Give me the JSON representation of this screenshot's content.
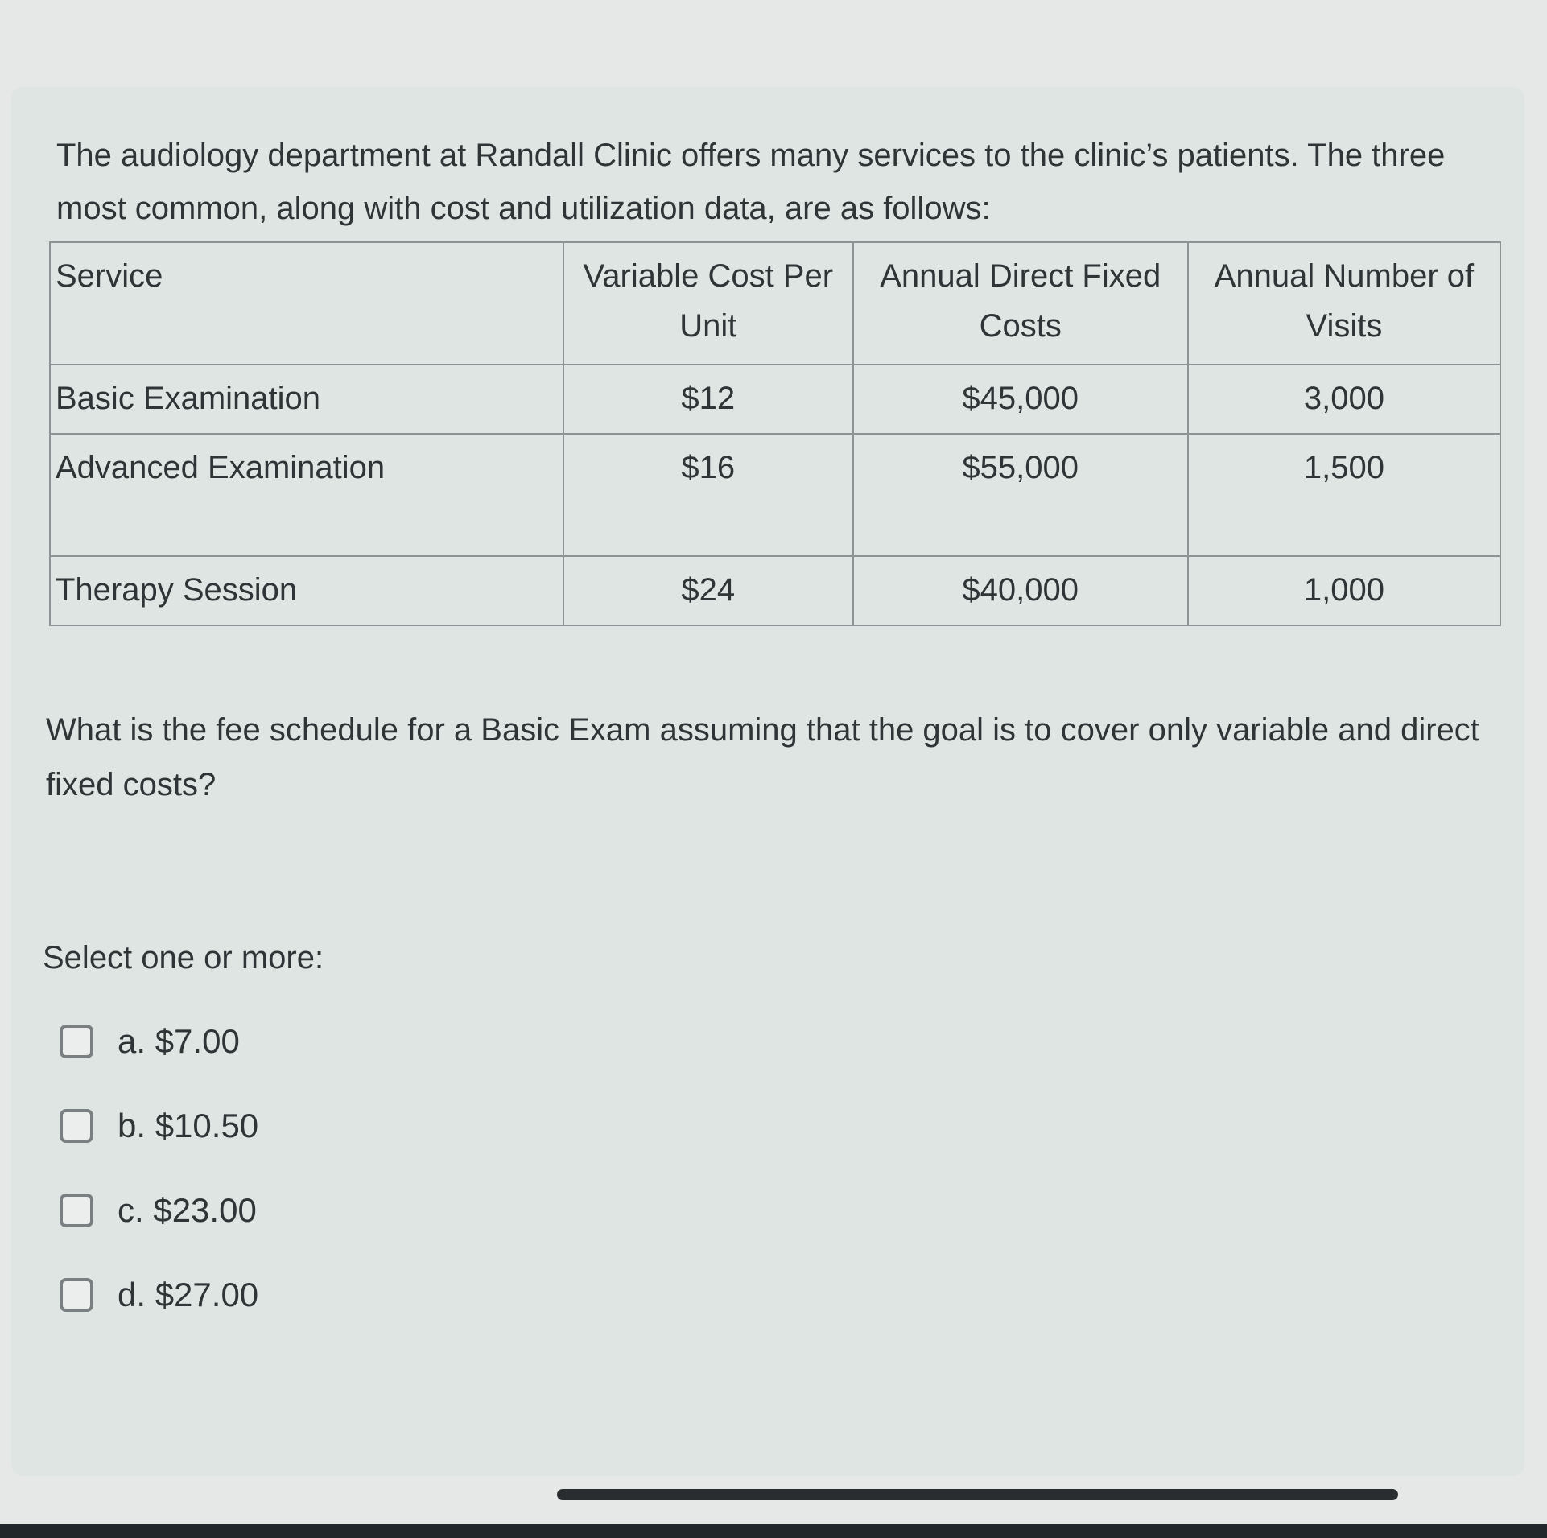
{
  "question": {
    "intro": "The audiology department at Randall Clinic offers many services to the clinic’s patients. The three most common, along with cost and utilization data, are as follows:",
    "table": {
      "headers": [
        "Service",
        "Variable Cost Per Unit",
        "Annual Direct Fixed Costs",
        "Annual Number of Visits"
      ],
      "rows": [
        [
          "Basic Examination",
          "$12",
          "$45,000",
          "3,000"
        ],
        [
          "Advanced Examination",
          "$16",
          "$55,000",
          "1,500"
        ],
        [
          "Therapy Session",
          "$24",
          "$40,000",
          "1,000"
        ]
      ]
    },
    "prompt": "What is the fee schedule for a Basic Exam assuming that the goal is to cover only variable and direct fixed costs?",
    "select_label": "Select one or more:",
    "options": [
      {
        "label": "a. $7.00",
        "checked": false
      },
      {
        "label": "b. $10.50",
        "checked": false
      },
      {
        "label": "c. $23.00",
        "checked": false
      },
      {
        "label": "d. $27.00",
        "checked": false
      }
    ]
  }
}
